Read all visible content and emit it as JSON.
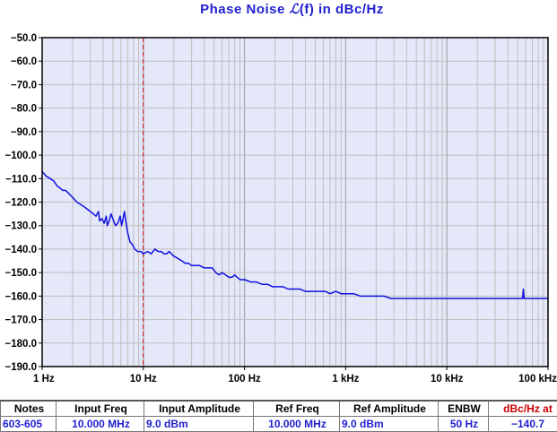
{
  "chart_data": {
    "type": "line",
    "title_prefix": "Phase  Noise ",
    "title_symbol": "ℒ",
    "title_suffix": "(f) in dBc/Hz",
    "x_scale": "log",
    "xlim": [
      1,
      100000
    ],
    "ylim": [
      -190,
      -50
    ],
    "x_ticks": [
      {
        "value": 1,
        "label": "1 Hz"
      },
      {
        "value": 10,
        "label": "10 Hz"
      },
      {
        "value": 100,
        "label": "100 Hz"
      },
      {
        "value": 1000,
        "label": "1 kHz"
      },
      {
        "value": 10000,
        "label": "10 kHz"
      },
      {
        "value": 100000,
        "label": "100 kHz"
      }
    ],
    "y_ticks": [
      {
        "value": -50,
        "label": "−50.0"
      },
      {
        "value": -60,
        "label": "−60.0"
      },
      {
        "value": -70,
        "label": "−70.0"
      },
      {
        "value": -80,
        "label": "−80.0"
      },
      {
        "value": -90,
        "label": "−90.0"
      },
      {
        "value": -100,
        "label": "−100.0"
      },
      {
        "value": -110,
        "label": "−110.0"
      },
      {
        "value": -120,
        "label": "−120.0"
      },
      {
        "value": -130,
        "label": "−130.0"
      },
      {
        "value": -140,
        "label": "−140.0"
      },
      {
        "value": -150,
        "label": "−150.0"
      },
      {
        "value": -160,
        "label": "−160.0"
      },
      {
        "value": -170,
        "label": "−170.0"
      },
      {
        "value": -180,
        "label": "−180.0"
      },
      {
        "value": -190,
        "label": "−190.0"
      }
    ],
    "grid": true,
    "marker_line": {
      "x": 10,
      "color": "#cc0000",
      "style": "dashed"
    },
    "series": [
      {
        "color": "#1010e0",
        "points": [
          [
            1.0,
            -107
          ],
          [
            1.1,
            -109
          ],
          [
            1.2,
            -110
          ],
          [
            1.3,
            -111
          ],
          [
            1.4,
            -113
          ],
          [
            1.5,
            -114
          ],
          [
            1.6,
            -115
          ],
          [
            1.7,
            -115
          ],
          [
            1.8,
            -116
          ],
          [
            2.0,
            -118
          ],
          [
            2.2,
            -120
          ],
          [
            2.4,
            -121
          ],
          [
            2.6,
            -122
          ],
          [
            2.8,
            -123
          ],
          [
            3.0,
            -124
          ],
          [
            3.2,
            -125
          ],
          [
            3.4,
            -126
          ],
          [
            3.6,
            -124
          ],
          [
            3.7,
            -128
          ],
          [
            3.9,
            -127
          ],
          [
            4.1,
            -129
          ],
          [
            4.3,
            -126
          ],
          [
            4.4,
            -130
          ],
          [
            4.6,
            -128
          ],
          [
            4.8,
            -125
          ],
          [
            5.0,
            -127
          ],
          [
            5.3,
            -130
          ],
          [
            5.6,
            -129
          ],
          [
            5.9,
            -126
          ],
          [
            6.1,
            -130
          ],
          [
            6.3,
            -127
          ],
          [
            6.5,
            -124
          ],
          [
            6.7,
            -128
          ],
          [
            7.0,
            -133
          ],
          [
            7.4,
            -137
          ],
          [
            7.8,
            -138
          ],
          [
            8.2,
            -140
          ],
          [
            8.8,
            -141
          ],
          [
            9.5,
            -141
          ],
          [
            10,
            -142
          ],
          [
            11,
            -141
          ],
          [
            12,
            -142
          ],
          [
            13,
            -140
          ],
          [
            14,
            -141
          ],
          [
            15,
            -141
          ],
          [
            16,
            -142
          ],
          [
            17,
            -142
          ],
          [
            18,
            -141
          ],
          [
            20,
            -143
          ],
          [
            22,
            -144
          ],
          [
            24,
            -145
          ],
          [
            26,
            -146
          ],
          [
            28,
            -146
          ],
          [
            30,
            -147
          ],
          [
            33,
            -147
          ],
          [
            36,
            -147
          ],
          [
            40,
            -148
          ],
          [
            44,
            -148
          ],
          [
            48,
            -148
          ],
          [
            52,
            -150
          ],
          [
            56,
            -151
          ],
          [
            60,
            -150
          ],
          [
            65,
            -151
          ],
          [
            70,
            -152
          ],
          [
            75,
            -152
          ],
          [
            80,
            -151
          ],
          [
            90,
            -153
          ],
          [
            100,
            -153
          ],
          [
            115,
            -154
          ],
          [
            130,
            -154
          ],
          [
            150,
            -155
          ],
          [
            170,
            -155
          ],
          [
            190,
            -156
          ],
          [
            210,
            -156
          ],
          [
            240,
            -156
          ],
          [
            270,
            -157
          ],
          [
            300,
            -157
          ],
          [
            350,
            -157
          ],
          [
            400,
            -158
          ],
          [
            450,
            -158
          ],
          [
            500,
            -158
          ],
          [
            560,
            -158
          ],
          [
            630,
            -158
          ],
          [
            700,
            -159
          ],
          [
            800,
            -158
          ],
          [
            900,
            -159
          ],
          [
            1000,
            -159
          ],
          [
            1200,
            -159
          ],
          [
            1400,
            -160
          ],
          [
            1700,
            -160
          ],
          [
            2000,
            -160
          ],
          [
            2400,
            -160
          ],
          [
            2800,
            -161
          ],
          [
            3300,
            -161
          ],
          [
            4000,
            -161
          ],
          [
            5000,
            -161
          ],
          [
            6000,
            -161
          ],
          [
            8000,
            -161
          ],
          [
            10000,
            -161
          ],
          [
            13000,
            -161
          ],
          [
            16000,
            -161
          ],
          [
            20000,
            -161
          ],
          [
            25000,
            -161
          ],
          [
            30000,
            -161
          ],
          [
            35000,
            -161
          ],
          [
            42000,
            -161
          ],
          [
            50000,
            -161
          ],
          [
            56000,
            -161
          ],
          [
            57000,
            -157
          ],
          [
            58000,
            -161
          ],
          [
            65000,
            -161
          ],
          [
            75000,
            -161
          ],
          [
            85000,
            -161
          ],
          [
            100000,
            -161
          ]
        ]
      }
    ]
  },
  "info_table": {
    "headers": [
      "Notes",
      "Input Freq",
      "Input Amplitude",
      "Ref Freq",
      "Ref Amplitude",
      "ENBW",
      "dBc/Hz at"
    ],
    "row": [
      "603-605",
      "10.000 MHz",
      "9.0 dBm",
      "10.000 MHz",
      "9.0 dBm",
      "50 Hz",
      "−140.7"
    ]
  },
  "colors": {
    "title": "#1f1fd0",
    "plot_background": "#e4e8f8",
    "trace": "#1010e0",
    "marker": "#cc0000",
    "grid": "#bfbfbf"
  }
}
